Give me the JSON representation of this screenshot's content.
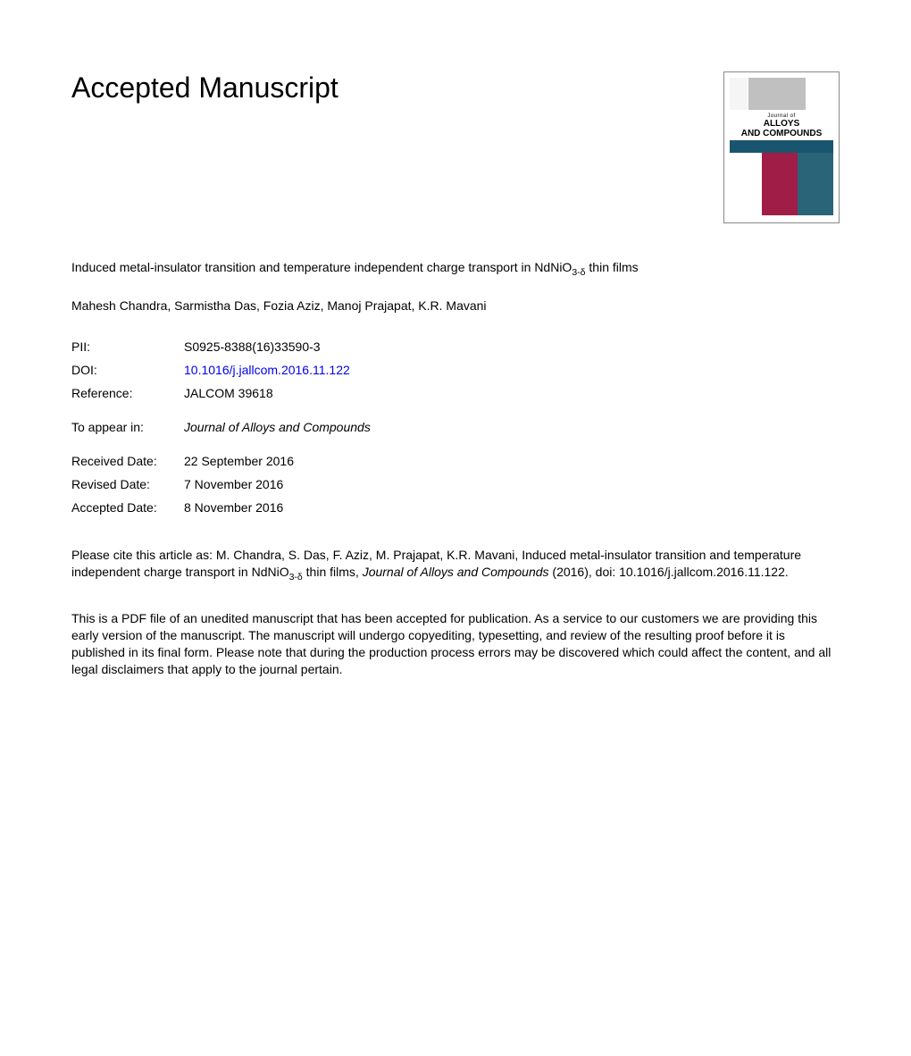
{
  "heading": "Accepted Manuscript",
  "title_pre": "Induced metal-insulator transition and temperature independent charge transport in NdNiO",
  "title_sub": "3-δ",
  "title_post": " thin films",
  "authors": "Mahesh Chandra, Sarmistha Das, Fozia Aziz, Manoj Prajapat, K.R. Mavani",
  "meta": {
    "pii_label": "PII:",
    "pii_value": "S0925-8388(16)33590-3",
    "doi_label": "DOI:",
    "doi_value": "10.1016/j.jallcom.2016.11.122",
    "ref_label": "Reference:",
    "ref_value": "JALCOM 39618"
  },
  "appear": {
    "label": "To appear in:",
    "value": "Journal of Alloys and Compounds"
  },
  "dates": {
    "received_label": "Received Date:",
    "received_value": "22 September 2016",
    "revised_label": "Revised Date:",
    "revised_value": "7 November 2016",
    "accepted_label": "Accepted Date:",
    "accepted_value": "8 November 2016"
  },
  "citation": {
    "pre": "Please cite this article as: M. Chandra, S. Das, F. Aziz, M. Prajapat, K.R. Mavani, Induced metal-insulator transition and temperature independent charge transport in NdNiO",
    "sub": "3-δ",
    "mid": " thin films, ",
    "journal": "Journal of Alloys and Compounds",
    "post": " (2016), doi: 10.1016/j.jallcom.2016.11.122."
  },
  "disclaimer": "This is a PDF file of an unedited manuscript that has been accepted for publication. As a service to our customers we are providing this early version of the manuscript. The manuscript will undergo copyediting, typesetting, and review of the resulting proof before it is published in its final form. Please note that during the production process errors may be discovered which could affect the content, and all legal disclaimers that apply to the journal pertain.",
  "cover": {
    "journal_of": "Journal of",
    "name_line1": "ALLOYS",
    "name_line2": "AND COMPOUNDS",
    "colors": {
      "header_mid": "#c0c0c0",
      "subtitle_bg": "#1a5570",
      "bottom_mid": "#a01d48",
      "bottom_right": "#2a6478"
    }
  },
  "style": {
    "body_font_size": 14,
    "heading_font_size": 32,
    "link_color": "#0000ee",
    "text_color": "#000000",
    "background": "#ffffff"
  }
}
